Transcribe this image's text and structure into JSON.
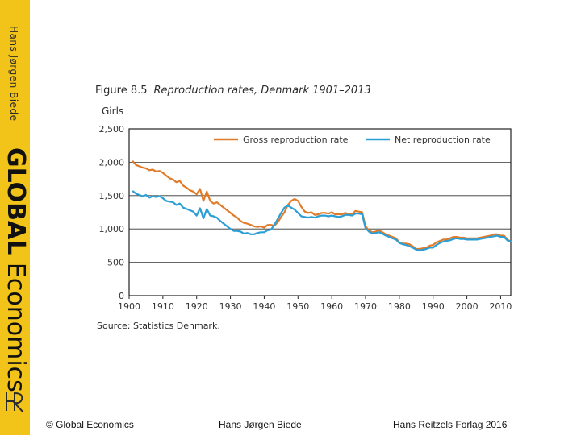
{
  "sidebar": {
    "author": "Hans Jørgen Biede",
    "title_bold": "GLOBAL",
    "title_light": "Economics",
    "logo_text": "HR",
    "band_color": "#f2c318"
  },
  "figure": {
    "number": "Figure 8.5",
    "title": "Reproduction rates, Denmark 1901–2013",
    "unit": "Girls",
    "source": "Source: Statistics Denmark."
  },
  "footer": {
    "copyright": "© Global Economics",
    "author": "Hans Jørgen Biede",
    "publisher": "Hans Reitzels Forlag 2016"
  },
  "chart_data": {
    "type": "line",
    "title": "Reproduction rates, Denmark 1901–2013",
    "ylabel": "Girls",
    "xlabel": "",
    "xlim": [
      1900,
      2013
    ],
    "ylim": [
      0,
      2500
    ],
    "x_ticks": [
      1900,
      1910,
      1920,
      1930,
      1940,
      1950,
      1960,
      1970,
      1980,
      1990,
      2000,
      2010
    ],
    "y_ticks": [
      0,
      500,
      1000,
      1500,
      2000,
      2500
    ],
    "y_tick_labels": [
      "0",
      "500",
      "1,000",
      "1,500",
      "2,000",
      "2,500"
    ],
    "grid": "horizontal",
    "legend_position": "top",
    "series": [
      {
        "name": "Gross reproduction rate",
        "color": "#e07b2a",
        "x": [
          1901,
          1902,
          1903,
          1904,
          1905,
          1906,
          1907,
          1908,
          1909,
          1910,
          1911,
          1912,
          1913,
          1914,
          1915,
          1916,
          1917,
          1918,
          1919,
          1920,
          1921,
          1922,
          1923,
          1924,
          1925,
          1926,
          1927,
          1928,
          1929,
          1930,
          1931,
          1932,
          1933,
          1934,
          1935,
          1936,
          1937,
          1938,
          1939,
          1940,
          1941,
          1942,
          1943,
          1944,
          1945,
          1946,
          1947,
          1948,
          1949,
          1950,
          1951,
          1952,
          1953,
          1954,
          1955,
          1956,
          1957,
          1958,
          1959,
          1960,
          1961,
          1962,
          1963,
          1964,
          1965,
          1966,
          1967,
          1968,
          1969,
          1970,
          1971,
          1972,
          1973,
          1974,
          1975,
          1976,
          1977,
          1978,
          1979,
          1980,
          1981,
          1982,
          1983,
          1984,
          1985,
          1986,
          1987,
          1988,
          1989,
          1990,
          1991,
          1992,
          1993,
          1994,
          1995,
          1996,
          1997,
          1998,
          1999,
          2000,
          2001,
          2002,
          2003,
          2004,
          2005,
          2006,
          2007,
          2008,
          2009,
          2010,
          2011,
          2012,
          2013
        ],
        "values": [
          2020,
          1960,
          1940,
          1920,
          1910,
          1880,
          1890,
          1860,
          1870,
          1840,
          1800,
          1760,
          1740,
          1700,
          1720,
          1650,
          1620,
          1580,
          1560,
          1520,
          1600,
          1420,
          1560,
          1420,
          1380,
          1400,
          1360,
          1320,
          1280,
          1240,
          1200,
          1170,
          1120,
          1090,
          1080,
          1060,
          1040,
          1030,
          1040,
          1020,
          1060,
          1060,
          1050,
          1100,
          1180,
          1250,
          1360,
          1420,
          1450,
          1420,
          1330,
          1260,
          1240,
          1250,
          1210,
          1220,
          1240,
          1240,
          1230,
          1250,
          1220,
          1220,
          1220,
          1240,
          1220,
          1220,
          1270,
          1260,
          1250,
          1040,
          980,
          950,
          960,
          980,
          950,
          920,
          900,
          880,
          860,
          800,
          780,
          780,
          770,
          740,
          700,
          700,
          710,
          720,
          750,
          760,
          800,
          820,
          840,
          840,
          860,
          880,
          880,
          870,
          870,
          860,
          860,
          860,
          860,
          870,
          880,
          890,
          900,
          920,
          920,
          900,
          900,
          840,
          810
        ]
      },
      {
        "name": "Net reproduction rate",
        "color": "#2a9fd6",
        "x": [
          1901,
          1902,
          1903,
          1904,
          1905,
          1906,
          1907,
          1908,
          1909,
          1910,
          1911,
          1912,
          1913,
          1914,
          1915,
          1916,
          1917,
          1918,
          1919,
          1920,
          1921,
          1922,
          1923,
          1924,
          1925,
          1926,
          1927,
          1928,
          1929,
          1930,
          1931,
          1932,
          1933,
          1934,
          1935,
          1936,
          1937,
          1938,
          1939,
          1940,
          1941,
          1942,
          1943,
          1944,
          1945,
          1946,
          1947,
          1948,
          1949,
          1950,
          1951,
          1952,
          1953,
          1954,
          1955,
          1956,
          1957,
          1958,
          1959,
          1960,
          1961,
          1962,
          1963,
          1964,
          1965,
          1966,
          1967,
          1968,
          1969,
          1970,
          1971,
          1972,
          1973,
          1974,
          1975,
          1976,
          1977,
          1978,
          1979,
          1980,
          1981,
          1982,
          1983,
          1984,
          1985,
          1986,
          1987,
          1988,
          1989,
          1990,
          1991,
          1992,
          1993,
          1994,
          1995,
          1996,
          1997,
          1998,
          1999,
          2000,
          2001,
          2002,
          2003,
          2004,
          2005,
          2006,
          2007,
          2008,
          2009,
          2010,
          2011,
          2012,
          2013
        ],
        "values": [
          1570,
          1530,
          1510,
          1490,
          1510,
          1470,
          1490,
          1480,
          1490,
          1460,
          1420,
          1410,
          1400,
          1360,
          1380,
          1320,
          1300,
          1280,
          1260,
          1200,
          1310,
          1160,
          1300,
          1200,
          1190,
          1170,
          1120,
          1080,
          1040,
          1000,
          970,
          970,
          960,
          930,
          940,
          920,
          920,
          940,
          950,
          950,
          980,
          990,
          1060,
          1150,
          1240,
          1320,
          1350,
          1320,
          1290,
          1240,
          1190,
          1180,
          1170,
          1180,
          1170,
          1190,
          1200,
          1200,
          1190,
          1200,
          1190,
          1180,
          1190,
          1210,
          1210,
          1200,
          1230,
          1230,
          1220,
          1010,
          960,
          930,
          940,
          950,
          930,
          900,
          880,
          860,
          840,
          790,
          770,
          760,
          740,
          720,
          690,
          680,
          690,
          700,
          720,
          720,
          760,
          790,
          810,
          820,
          830,
          850,
          860,
          850,
          850,
          840,
          840,
          840,
          840,
          850,
          860,
          870,
          880,
          890,
          900,
          880,
          880,
          830,
          810
        ]
      }
    ]
  }
}
